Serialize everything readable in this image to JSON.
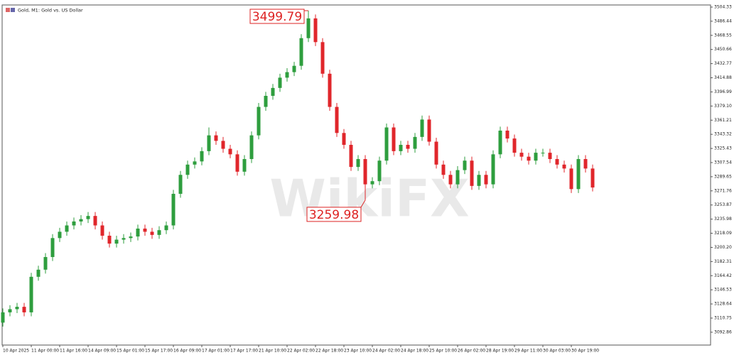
{
  "chart_data": {
    "type": "candlestick",
    "title": "Gold, M1: Gold vs. US Dollar",
    "watermark": "WikiFX",
    "up_color": "#2e9e3e",
    "down_color": "#e0262b",
    "categories": [
      "10 Apr 2025",
      null,
      null,
      null,
      "11 Apr 00:00",
      null,
      null,
      null,
      "11 Apr 16:00",
      null,
      null,
      null,
      "14 Apr 09:00",
      null,
      null,
      null,
      "15 Apr 01:00",
      null,
      null,
      null,
      "15 Apr 17:00",
      null,
      null,
      null,
      "16 Apr 09:00",
      null,
      null,
      null,
      "17 Apr 01:00",
      null,
      null,
      null,
      "17 Apr 17:00",
      null,
      null,
      null,
      "21 Apr 10:00",
      null,
      null,
      null,
      "22 Apr 02:00",
      null,
      null,
      null,
      "22 Apr 18:00",
      null,
      null,
      null,
      "23 Apr 10:00",
      null,
      null,
      null,
      "24 Apr 02:00",
      null,
      null,
      null,
      "24 Apr 18:00",
      null,
      null,
      null,
      "25 Apr 10:00",
      null,
      null,
      null,
      "26 Apr 02:00",
      null,
      null,
      null,
      "28 Apr 19:00",
      null,
      null,
      null,
      "29 Apr 11:00",
      null,
      null,
      null,
      "30 Apr 03:00",
      null,
      null,
      null,
      "30 Apr 19:00",
      null,
      null,
      null
    ],
    "open": [
      3105,
      3118,
      3122,
      3125,
      3118,
      3163,
      3172,
      3188,
      3212,
      3220,
      3228,
      3233,
      3236,
      3240,
      3228,
      3215,
      3205,
      3210,
      3212,
      3214,
      3224,
      3220,
      3216,
      3222,
      3228,
      3268,
      3292,
      3305,
      3309,
      3322,
      3342,
      3335,
      3325,
      3318,
      3296,
      3312,
      3342,
      3378,
      3392,
      3402,
      3415,
      3422,
      3430,
      3465,
      3490,
      3460,
      3420,
      3378,
      3345,
      3330,
      3302,
      3312,
      3280,
      3284,
      3310,
      3352,
      3322,
      3330,
      3325,
      3340,
      3362,
      3334,
      3305,
      3292,
      3280,
      3298,
      3310,
      3278,
      3292,
      3280,
      3318,
      3348,
      3338,
      3320,
      3315,
      3310,
      3320,
      3320,
      3312,
      3305,
      3300,
      3274,
      3312,
      3300
    ],
    "high": [
      3123,
      3127,
      3130,
      3130,
      3168,
      3177,
      3193,
      3217,
      3225,
      3233,
      3238,
      3241,
      3245,
      3245,
      3233,
      3220,
      3215,
      3217,
      3219,
      3229,
      3229,
      3225,
      3227,
      3233,
      3273,
      3297,
      3310,
      3314,
      3327,
      3352,
      3347,
      3340,
      3330,
      3323,
      3317,
      3347,
      3383,
      3397,
      3407,
      3420,
      3427,
      3435,
      3470,
      3499.79,
      3495,
      3465,
      3425,
      3383,
      3350,
      3335,
      3317,
      3317,
      3289,
      3315,
      3357,
      3357,
      3335,
      3335,
      3345,
      3367,
      3367,
      3339,
      3310,
      3297,
      3303,
      3315,
      3315,
      3297,
      3297,
      3323,
      3353,
      3353,
      3343,
      3325,
      3320,
      3325,
      3325,
      3325,
      3317,
      3310,
      3305,
      3317,
      3317,
      3305
    ],
    "low": [
      3100,
      3113,
      3117,
      3113,
      3113,
      3158,
      3167,
      3183,
      3207,
      3215,
      3223,
      3228,
      3231,
      3223,
      3210,
      3200,
      3200,
      3205,
      3207,
      3209,
      3215,
      3211,
      3211,
      3217,
      3223,
      3263,
      3287,
      3300,
      3304,
      3317,
      3330,
      3320,
      3313,
      3291,
      3291,
      3307,
      3337,
      3373,
      3387,
      3397,
      3410,
      3417,
      3425,
      3460,
      3455,
      3415,
      3373,
      3340,
      3325,
      3297,
      3297,
      3259.98,
      3275,
      3279,
      3305,
      3317,
      3317,
      3320,
      3320,
      3335,
      3329,
      3300,
      3287,
      3275,
      3275,
      3293,
      3273,
      3273,
      3275,
      3275,
      3313,
      3333,
      3315,
      3310,
      3305,
      3305,
      3315,
      3307,
      3300,
      3295,
      3269,
      3269,
      3295,
      3271
    ],
    "close": [
      3118,
      3122,
      3125,
      3118,
      3163,
      3172,
      3188,
      3212,
      3220,
      3228,
      3233,
      3236,
      3240,
      3228,
      3215,
      3205,
      3210,
      3212,
      3214,
      3224,
      3220,
      3216,
      3222,
      3228,
      3268,
      3292,
      3305,
      3309,
      3322,
      3342,
      3335,
      3325,
      3318,
      3296,
      3312,
      3342,
      3378,
      3392,
      3402,
      3415,
      3422,
      3430,
      3465,
      3490,
      3460,
      3420,
      3378,
      3345,
      3330,
      3302,
      3312,
      3280,
      3284,
      3310,
      3352,
      3322,
      3330,
      3325,
      3340,
      3362,
      3334,
      3305,
      3292,
      3280,
      3298,
      3310,
      3278,
      3292,
      3280,
      3318,
      3348,
      3338,
      3320,
      3315,
      3310,
      3320,
      3320,
      3312,
      3305,
      3300,
      3274,
      3312,
      3300,
      3276
    ],
    "ylim": [
      3076.6,
      3507.0
    ],
    "yticks": [
      3504.33,
      3486.44,
      3468.55,
      3450.66,
      3432.77,
      3414.88,
      3396.99,
      {
        "value": 3379.1,
        "label": "3379.10"
      },
      3361.21,
      3343.32,
      3325.43,
      3307.54,
      3289.65,
      3271.76,
      3253.87,
      3235.98,
      3218.09,
      {
        "value": 3200.2,
        "label": "3200.20"
      },
      3182.31,
      3164.42,
      3146.53,
      3128.64,
      3110.75,
      3092.86
    ],
    "annotations": [
      {
        "label": "3499.79",
        "value": 3499.79
      },
      {
        "label": "3259.98",
        "value": 3259.98
      }
    ]
  }
}
